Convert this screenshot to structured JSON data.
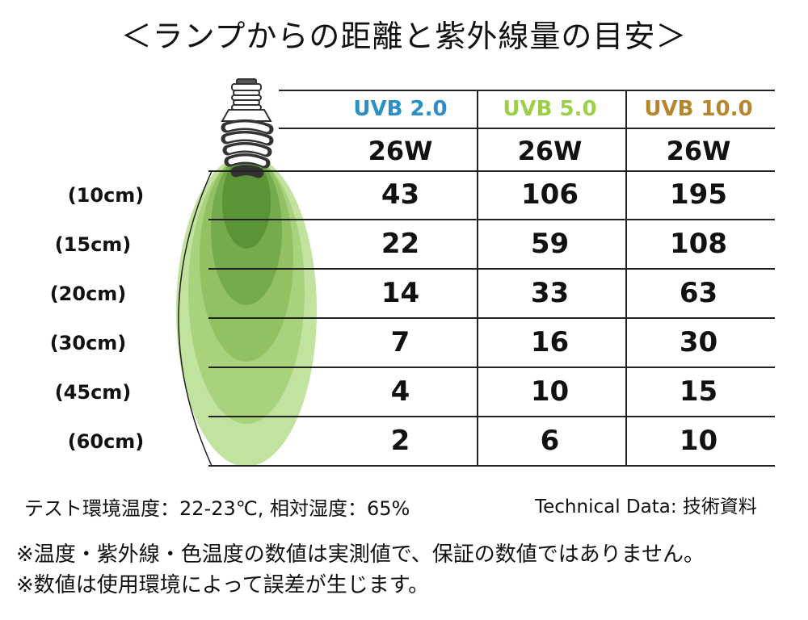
{
  "title": "＜ランプからの距離と紫外線量の目安＞",
  "columns": [
    {
      "label": "UVB 2.0",
      "color": "#2a8fc4",
      "watt": "26W"
    },
    {
      "label": "UVB 5.0",
      "color": "#9dcf4a",
      "watt": "26W"
    },
    {
      "label": "UVB 10.0",
      "color": "#b8862a",
      "watt": "26W"
    }
  ],
  "rows": [
    {
      "label": "(10cm)",
      "values": [
        "43",
        "106",
        "195"
      ]
    },
    {
      "label": "(15cm)",
      "values": [
        "22",
        "59",
        "108"
      ]
    },
    {
      "label": "(20cm)",
      "values": [
        "14",
        "33",
        "63"
      ]
    },
    {
      "label": "(30cm)",
      "values": [
        "7",
        "16",
        "30"
      ]
    },
    {
      "label": "(45cm)",
      "values": [
        "4",
        "10",
        "15"
      ]
    },
    {
      "label": "(60cm)",
      "values": [
        "2",
        "6",
        "10"
      ]
    }
  ],
  "conditions": "テスト環境温度：22-23℃, 相対湿度：65%",
  "technical": "Technical Data: 技術資料",
  "notes": [
    "※温度・紫外線・色温度の数値は実測値で、保証の数値ではありません。",
    "※数値は使用環境によって誤差が生じます。"
  ],
  "icons": {
    "bulb": "uv-bulb-icon"
  },
  "colors": {
    "beam_light": "#a9d37f",
    "beam_dark": "#3f7a26"
  }
}
